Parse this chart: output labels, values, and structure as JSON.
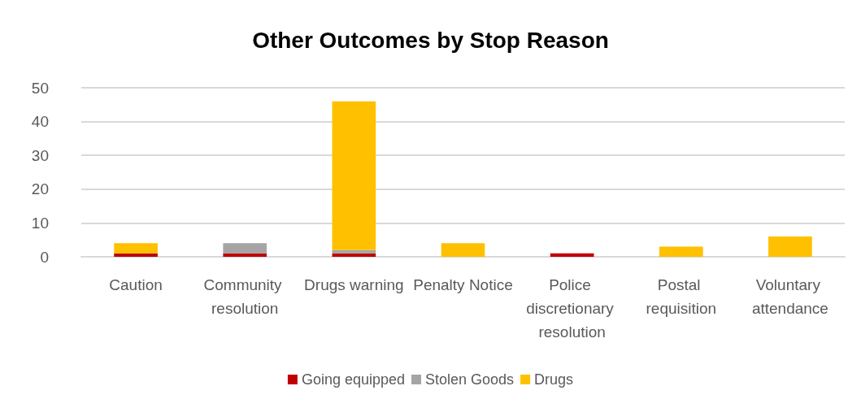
{
  "chart_data": {
    "type": "bar",
    "title": "Other Outcomes by Stop Reason",
    "categories": [
      "Caution",
      "Community resolution",
      "Drugs warning",
      "Penalty Notice",
      "Police discretionary resolution",
      "Postal requisition",
      "Voluntary attendance"
    ],
    "series": [
      {
        "name": "Going equipped",
        "color": "#c00000",
        "values": [
          1,
          1,
          1,
          0,
          1,
          0,
          0
        ]
      },
      {
        "name": "Stolen Goods",
        "color": "#a5a5a5",
        "values": [
          0,
          3,
          1,
          0,
          0,
          0,
          0
        ]
      },
      {
        "name": "Drugs",
        "color": "#ffc000",
        "values": [
          3,
          0,
          44,
          4,
          0,
          3,
          6
        ]
      }
    ],
    "stacked": true,
    "ylim": [
      0,
      50
    ],
    "yticks": [
      0,
      10,
      20,
      30,
      40,
      50
    ],
    "grid": "y",
    "legend": "bottom"
  }
}
